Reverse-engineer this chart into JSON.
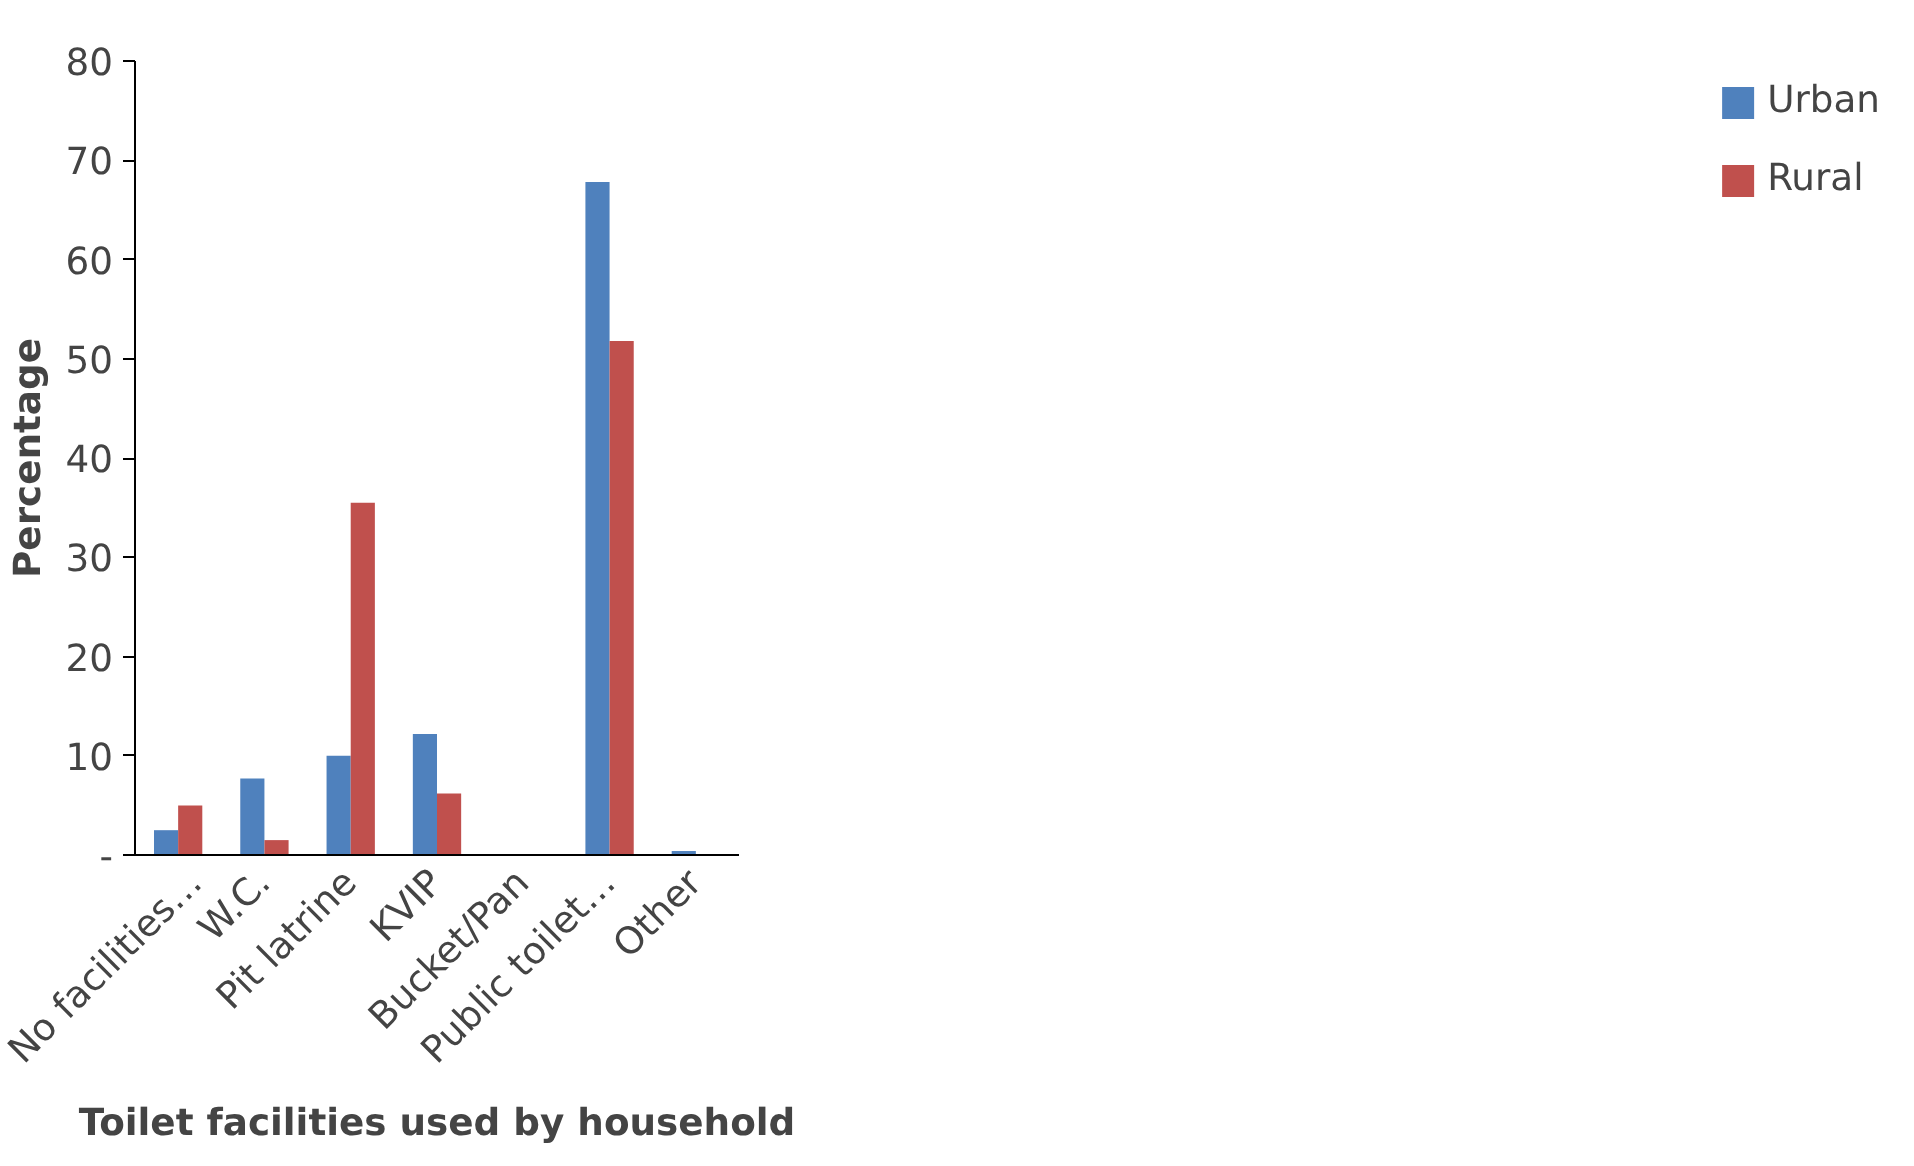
{
  "chart_data": {
    "type": "bar",
    "xlabel": "Toilet facilities used by household",
    "ylabel": "Percentage",
    "categories": [
      "No facilities…",
      "W.C.",
      "Pit latrine",
      "KVIP",
      "Bucket/Pan",
      "Public toilet…",
      "Other"
    ],
    "series": [
      {
        "name": "Urban",
        "color": "#4f81bd",
        "values": [
          2.5,
          7.7,
          10,
          12.2,
          0,
          67.8,
          0.4
        ]
      },
      {
        "name": "Rural",
        "color": "#c0504d",
        "values": [
          5,
          1.5,
          35.5,
          6.2,
          0,
          51.8,
          0
        ]
      }
    ],
    "ylim": [
      0,
      80
    ],
    "yticks": [
      {
        "value": 0,
        "label": "-"
      },
      10,
      20,
      30,
      40,
      50,
      60,
      70,
      80
    ],
    "grid": false,
    "legend": "right"
  }
}
